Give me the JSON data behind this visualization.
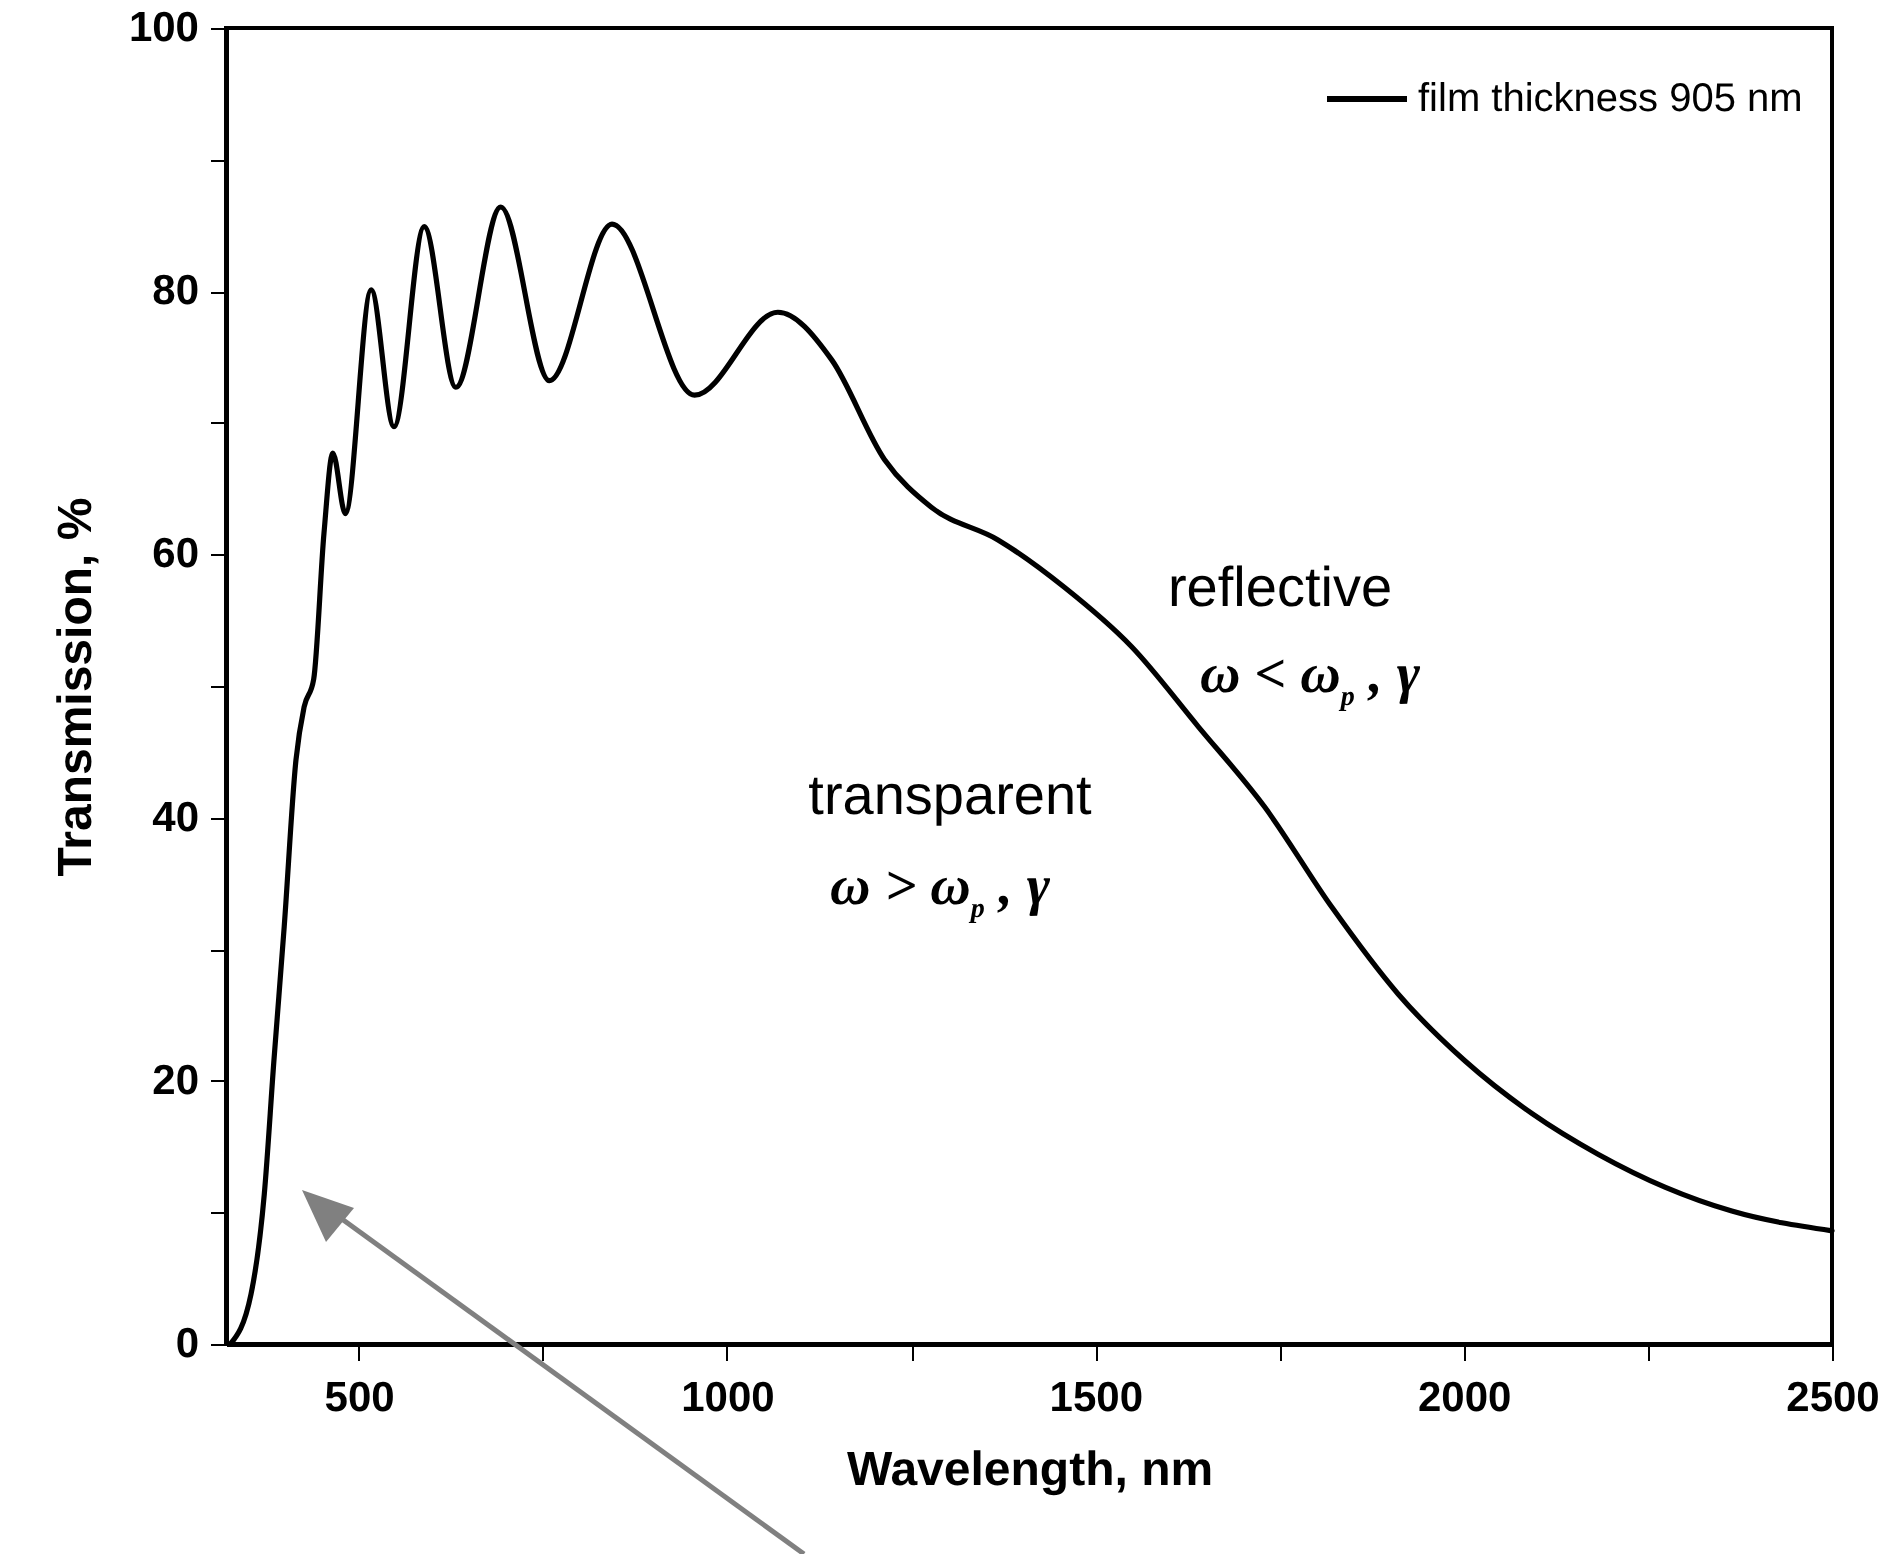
{
  "chart_data": {
    "type": "line",
    "xlabel": "Wavelength, nm",
    "ylabel": "Transmission, %",
    "xlim": [
      320,
      2500
    ],
    "ylim": [
      0,
      100
    ],
    "xticks": [
      500,
      {
        "value": 750,
        "label": null
      },
      1000,
      {
        "value": 1250,
        "label": null
      },
      1500,
      {
        "value": 1750,
        "label": null
      },
      2000,
      {
        "value": 2250,
        "label": null
      },
      2500
    ],
    "yticks": [
      0,
      {
        "value": 10,
        "label": null
      },
      20,
      {
        "value": 30,
        "label": null
      },
      40,
      {
        "value": 50,
        "label": null
      },
      60,
      {
        "value": 70,
        "label": null
      },
      80,
      {
        "value": 90,
        "label": null
      },
      100
    ],
    "x": [
      326,
      354,
      372,
      385,
      399,
      415,
      426,
      439,
      453,
      465,
      482,
      517,
      548,
      589,
      632,
      693,
      759,
      844,
      956,
      1069,
      1142,
      1214,
      1277,
      1368,
      1458,
      1549,
      1640,
      1730,
      1821,
      1911,
      2002,
      2093,
      2183,
      2274,
      2364,
      2500
    ],
    "series": [
      {
        "name": "film thickness 905 nm",
        "color": "#000000",
        "values": [
          0,
          3.8,
          11.4,
          21.5,
          31.7,
          44.4,
          48.4,
          50.5,
          61.6,
          67.7,
          63.1,
          80.1,
          69.7,
          84.9,
          72.7,
          86.4,
          73.2,
          85.1,
          72.1,
          78.4,
          74.8,
          67.2,
          63.6,
          61.1,
          57.5,
          53,
          46.9,
          40.8,
          33.2,
          26.6,
          21.5,
          17.5,
          14.4,
          11.9,
          10.1,
          8.6
        ]
      }
    ],
    "annotations": [
      "reflective",
      "ω < ω$_{p}$ , γ",
      "transparent",
      "ω > ω$_{p}$ , γ"
    ],
    "legend": "top right",
    "grid": false,
    "line_style": "solid",
    "marker": "none"
  }
}
